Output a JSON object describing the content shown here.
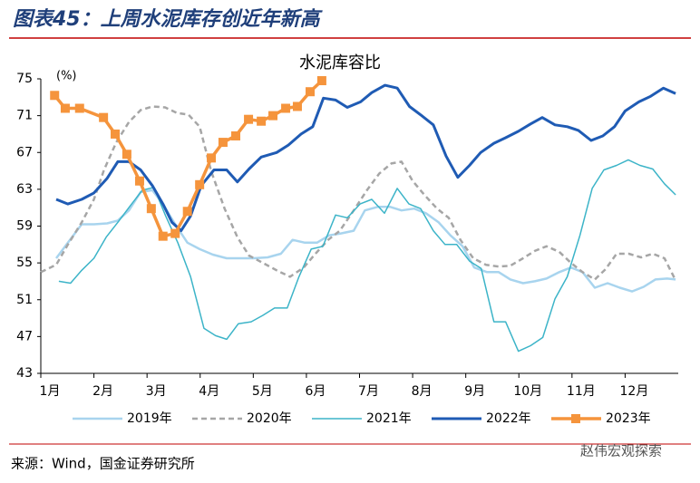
{
  "header": {
    "title": "图表45：上周水泥库存创近年新高"
  },
  "chart_data": {
    "type": "line",
    "title": "水泥库容比",
    "y_unit": "(%)",
    "xlim": [
      1,
      13
    ],
    "xticks": [
      {
        "value": 1,
        "label": "1月"
      },
      {
        "value": 2,
        "label": "2月"
      },
      {
        "value": 3,
        "label": "3月"
      },
      {
        "value": 4,
        "label": "4月"
      },
      {
        "value": 5,
        "label": "5月"
      },
      {
        "value": 6,
        "label": "6月"
      },
      {
        "value": 7,
        "label": "7月"
      },
      {
        "value": 8,
        "label": "8月"
      },
      {
        "value": 9,
        "label": "9月"
      },
      {
        "value": 10,
        "label": "10月"
      },
      {
        "value": 11,
        "label": "11月"
      },
      {
        "value": 12,
        "label": "12月"
      }
    ],
    "ylim": [
      43,
      75
    ],
    "yticks": [
      43,
      47,
      51,
      55,
      59,
      63,
      67,
      71,
      75
    ],
    "legend": "bottom",
    "series": [
      {
        "name": "2019年",
        "color": "#a8d4ee",
        "style": "solid",
        "width": 2.5,
        "x": [
          1.29,
          1.51,
          1.77,
          2.0,
          2.25,
          2.45,
          2.66,
          2.88,
          3.1,
          3.3,
          3.53,
          3.76,
          3.99,
          4.24,
          4.5,
          4.75,
          5.0,
          5.27,
          5.52,
          5.74,
          5.97,
          6.2,
          6.43,
          6.65,
          6.89,
          7.1,
          7.35,
          7.57,
          7.79,
          8.03,
          8.25,
          8.49,
          8.71,
          8.94,
          9.16,
          9.4,
          9.62,
          9.84,
          10.08,
          10.3,
          10.52,
          10.76,
          10.98,
          11.2,
          11.43,
          11.67,
          11.9,
          12.13,
          12.35,
          12.57,
          12.79,
          12.95
        ],
        "values": [
          55.5,
          57.2,
          59.2,
          59.2,
          59.3,
          59.6,
          60.7,
          62.7,
          62.9,
          61.4,
          59.2,
          57.2,
          56.5,
          55.9,
          55.5,
          55.5,
          55.5,
          55.6,
          56.0,
          57.5,
          57.2,
          57.2,
          58.0,
          58.2,
          58.5,
          60.7,
          61.1,
          61.1,
          60.7,
          60.9,
          60.4,
          59.4,
          58.0,
          56.8,
          54.5,
          54.0,
          54.0,
          53.2,
          52.8,
          53.0,
          53.3,
          54.0,
          54.5,
          54.0,
          52.3,
          52.8,
          52.3,
          51.9,
          52.4,
          53.2,
          53.3,
          53.2
        ]
      },
      {
        "name": "2020年",
        "color": "#a6a6a6",
        "style": "dashed",
        "width": 2.5,
        "x": [
          1.0,
          1.29,
          1.51,
          1.77,
          2.0,
          2.19,
          2.42,
          2.66,
          2.88,
          3.1,
          3.34,
          3.56,
          3.78,
          3.99,
          4.21,
          4.46,
          4.7,
          4.92,
          5.18,
          5.44,
          5.69,
          5.95,
          6.17,
          6.41,
          6.63,
          6.89,
          7.14,
          7.37,
          7.6,
          7.79,
          8.0,
          8.22,
          8.46,
          8.68,
          8.9,
          9.14,
          9.38,
          9.62,
          9.84,
          10.08,
          10.3,
          10.52,
          10.76,
          10.98,
          11.2,
          11.43,
          11.63,
          11.84,
          12.07,
          12.3,
          12.52,
          12.74,
          12.95
        ],
        "values": [
          54.0,
          54.8,
          57.0,
          59.4,
          61.9,
          65.1,
          68.1,
          70.3,
          71.6,
          72.0,
          71.9,
          71.3,
          71.1,
          69.8,
          64.9,
          60.9,
          57.8,
          55.8,
          55.0,
          54.2,
          53.5,
          54.5,
          56.0,
          57.5,
          58.5,
          60.7,
          62.9,
          64.7,
          65.8,
          66.0,
          63.9,
          62.4,
          60.9,
          59.9,
          57.5,
          55.5,
          54.8,
          54.6,
          54.7,
          55.5,
          56.3,
          56.8,
          56.2,
          55.0,
          54.0,
          53.2,
          54.3,
          56.0,
          56.0,
          55.6,
          56.0,
          55.5,
          53.1
        ]
      },
      {
        "name": "2021年",
        "color": "#3cb4c8",
        "style": "solid",
        "width": 1.5,
        "x": [
          1.34,
          1.56,
          1.77,
          2.0,
          2.23,
          2.45,
          2.67,
          2.91,
          3.13,
          3.35,
          3.58,
          3.82,
          4.07,
          4.29,
          4.5,
          4.72,
          4.96,
          5.18,
          5.4,
          5.64,
          5.86,
          6.09,
          6.31,
          6.55,
          6.77,
          7.01,
          7.23,
          7.47,
          7.71,
          7.93,
          8.15,
          8.39,
          8.61,
          8.83,
          9.07,
          9.29,
          9.53,
          9.75,
          9.99,
          10.22,
          10.45,
          10.68,
          10.91,
          11.15,
          11.38,
          11.6,
          11.84,
          12.06,
          12.28,
          12.52,
          12.74,
          12.95
        ],
        "values": [
          53.0,
          52.8,
          54.2,
          55.5,
          57.8,
          59.4,
          61.1,
          62.9,
          63.2,
          60.1,
          57.2,
          53.5,
          47.9,
          47.1,
          46.7,
          48.4,
          48.6,
          49.3,
          50.1,
          50.1,
          53.5,
          56.5,
          56.8,
          60.2,
          59.9,
          61.4,
          61.9,
          60.4,
          63.1,
          61.4,
          60.9,
          58.5,
          57.0,
          57.0,
          55.2,
          54.4,
          48.6,
          48.6,
          45.4,
          46.0,
          46.9,
          51.1,
          53.5,
          58.0,
          63.1,
          65.1,
          65.6,
          66.2,
          65.6,
          65.2,
          63.6,
          62.4
        ]
      },
      {
        "name": "2022年",
        "color": "#1f5bb4",
        "style": "solid",
        "width": 3,
        "x": [
          1.29,
          1.51,
          1.77,
          2.0,
          2.25,
          2.45,
          2.66,
          2.88,
          3.1,
          3.3,
          3.47,
          3.64,
          3.82,
          4.02,
          4.26,
          4.5,
          4.7,
          4.92,
          5.15,
          5.44,
          5.66,
          5.9,
          6.12,
          6.32,
          6.55,
          6.77,
          7.02,
          7.23,
          7.48,
          7.71,
          7.94,
          8.17,
          8.39,
          8.63,
          8.85,
          9.07,
          9.28,
          9.53,
          9.75,
          9.99,
          10.22,
          10.44,
          10.68,
          10.91,
          11.12,
          11.36,
          11.58,
          11.8,
          12.0,
          12.26,
          12.48,
          12.72,
          12.95
        ],
        "values": [
          61.9,
          61.4,
          61.9,
          62.6,
          64.2,
          66.0,
          66.0,
          65.1,
          63.4,
          61.4,
          59.4,
          58.5,
          60.1,
          63.4,
          65.1,
          65.1,
          63.8,
          65.2,
          66.5,
          67.0,
          67.8,
          69.0,
          69.8,
          72.9,
          72.7,
          71.9,
          72.5,
          73.5,
          74.3,
          74.0,
          72.0,
          71.0,
          70.0,
          66.6,
          64.3,
          65.6,
          67.0,
          68.0,
          68.6,
          69.3,
          70.1,
          70.8,
          70.0,
          69.8,
          69.4,
          68.3,
          68.8,
          69.8,
          71.5,
          72.5,
          73.1,
          74.0,
          73.4
        ]
      },
      {
        "name": "2023年",
        "color": "#f5943c",
        "style": "marker",
        "width": 3.5,
        "x": [
          1.26,
          1.46,
          1.73,
          2.18,
          2.4,
          2.62,
          2.86,
          3.08,
          3.3,
          3.53,
          3.76,
          3.99,
          4.21,
          4.43,
          4.67,
          4.91,
          5.15,
          5.37,
          5.61,
          5.83,
          6.07,
          6.29
        ],
        "values": [
          73.2,
          71.8,
          71.8,
          70.8,
          69.0,
          66.8,
          63.9,
          60.9,
          57.9,
          58.2,
          60.6,
          63.5,
          66.4,
          68.1,
          68.8,
          70.6,
          70.4,
          71.0,
          71.8,
          72.0,
          73.6,
          74.8
        ]
      }
    ]
  },
  "footer": {
    "source": "来源：Wind，国金证券研究所",
    "watermark": "赵伟宏观探索"
  }
}
